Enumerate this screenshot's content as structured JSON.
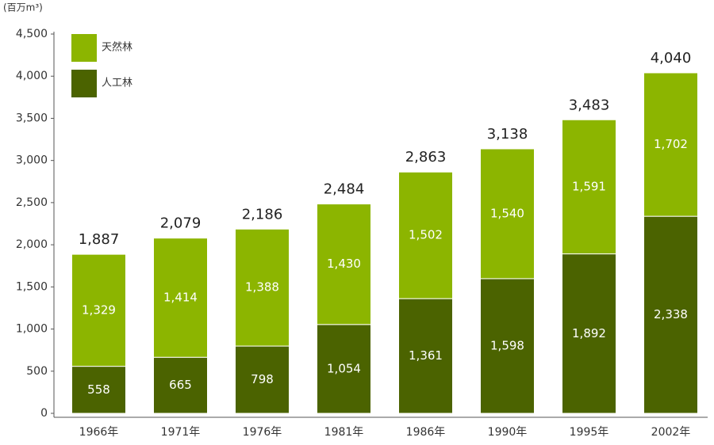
{
  "chart_data": {
    "type": "stacked_bar",
    "unit_label": "(百万m³)",
    "categories": [
      "1966年",
      "1971年",
      "1976年",
      "1981年",
      "1986年",
      "1990年",
      "1995年",
      "2002年"
    ],
    "series": [
      {
        "name": "人工林",
        "color": "#4b6300",
        "values": [
          558,
          665,
          798,
          1054,
          1361,
          1598,
          1892,
          2338
        ],
        "value_labels": [
          "558",
          "665",
          "798",
          "1,054",
          "1,361",
          "1,598",
          "1,892",
          "2,338"
        ]
      },
      {
        "name": "天然林",
        "color": "#8cb500",
        "values": [
          1329,
          1414,
          1388,
          1430,
          1502,
          1540,
          1591,
          1702
        ],
        "value_labels": [
          "1,329",
          "1,414",
          "1,388",
          "1,430",
          "1,502",
          "1,540",
          "1,591",
          "1,702"
        ]
      }
    ],
    "totals": [
      1887,
      2079,
      2186,
      2484,
      2863,
      3138,
      3483,
      4040
    ],
    "total_labels": [
      "1,887",
      "2,079",
      "2,186",
      "2,484",
      "2,863",
      "3,138",
      "3,483",
      "4,040"
    ],
    "ylim": [
      0,
      4500
    ],
    "yticks": [
      0,
      500,
      {
        "value": 1000,
        "label": "1,000"
      },
      {
        "value": 1500,
        "label": "1,500"
      },
      {
        "value": 2000,
        "label": "2,000"
      },
      {
        "value": 2500,
        "label": "2,500"
      },
      {
        "value": 3000,
        "label": "3,000"
      },
      {
        "value": 3500,
        "label": "3,500"
      },
      {
        "value": 4000,
        "label": "4,000"
      },
      {
        "value": 4500,
        "label": "4,500"
      }
    ],
    "legend": "top-left"
  }
}
